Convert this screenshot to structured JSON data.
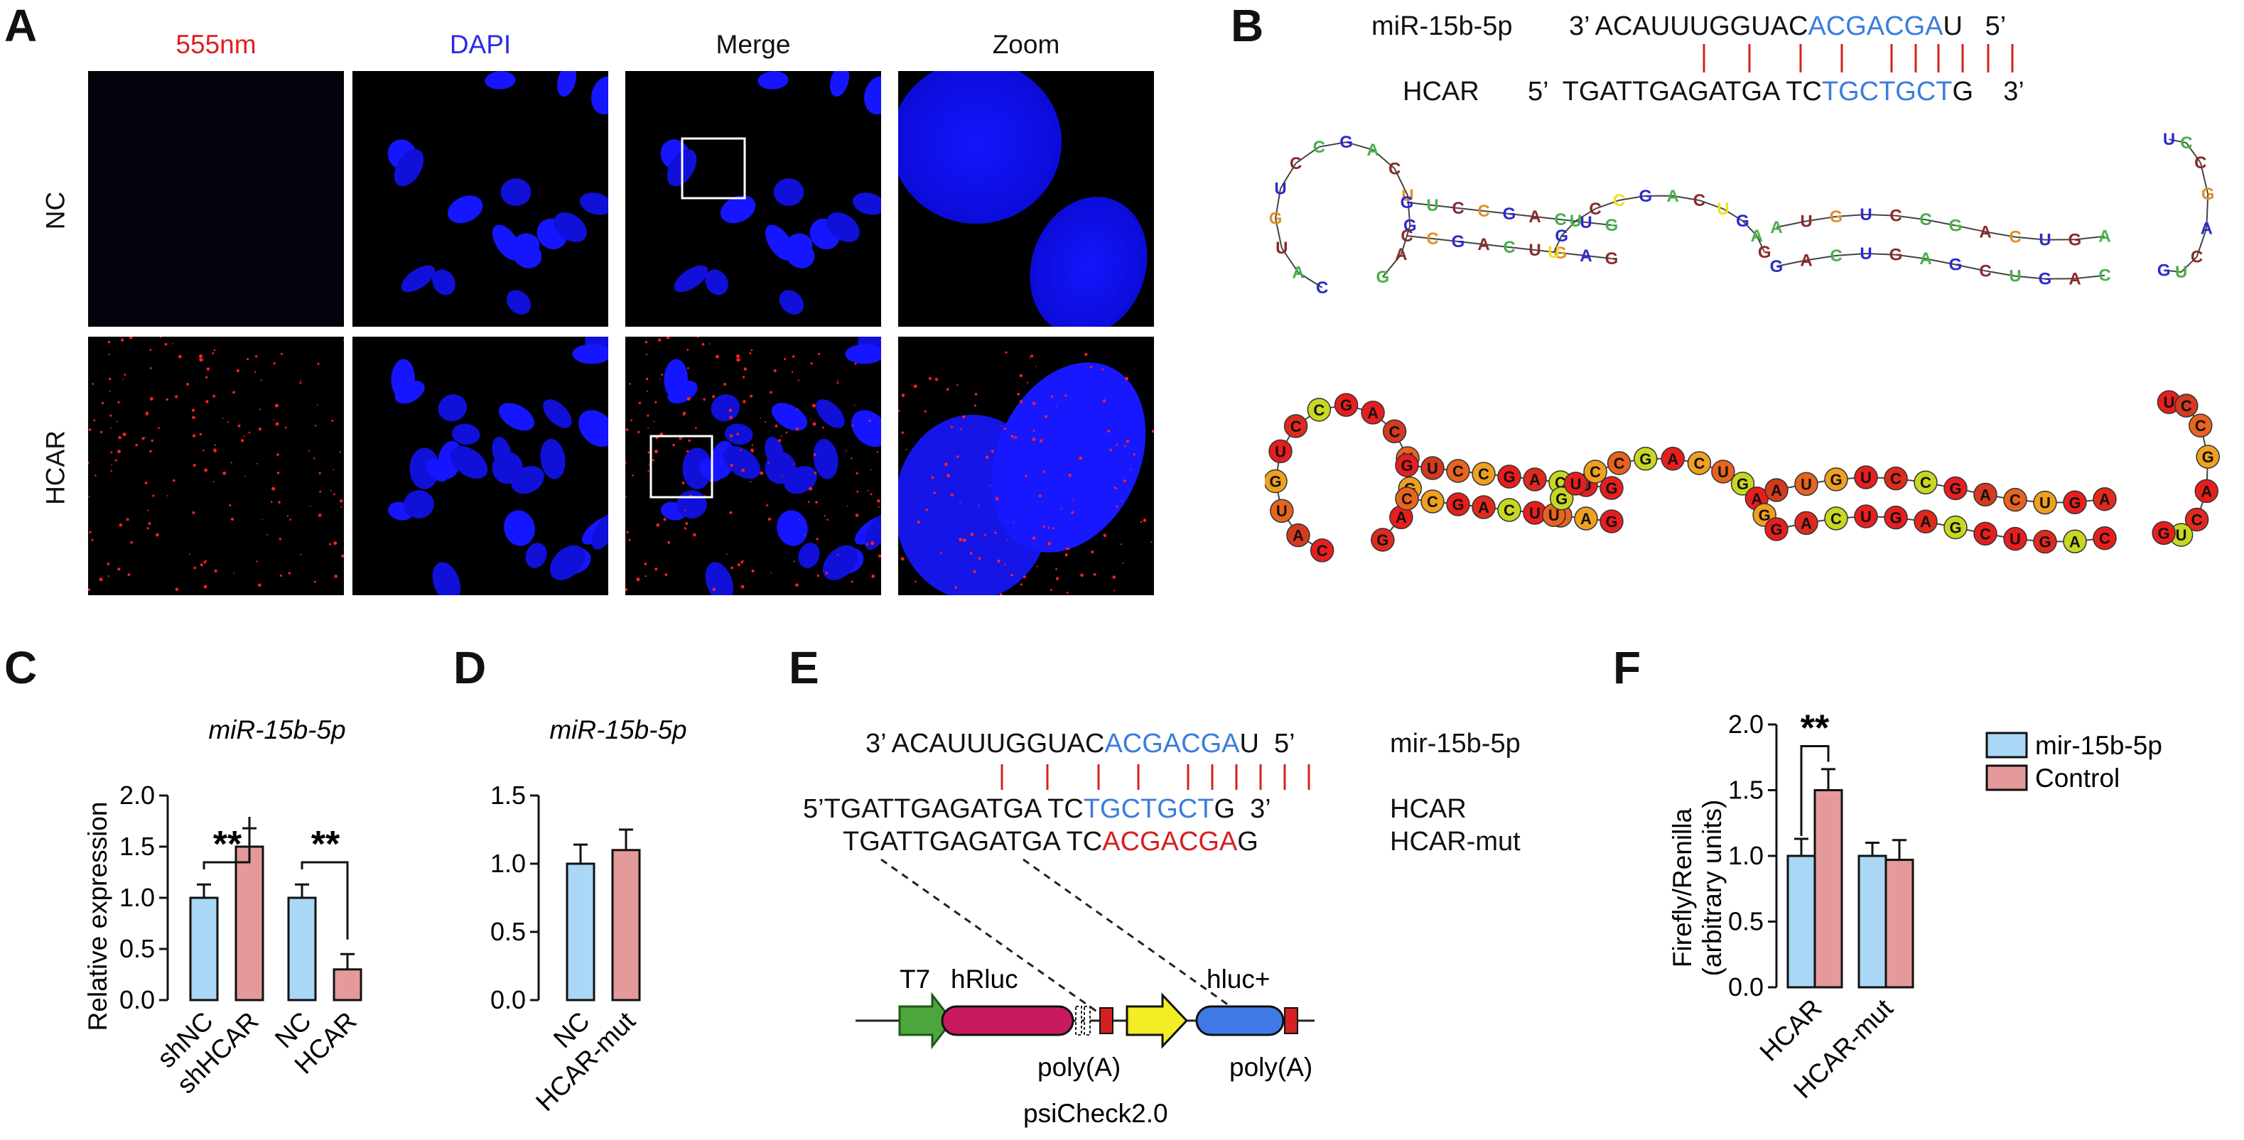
{
  "panels": {
    "A": "A",
    "B": "B",
    "C": "C",
    "D": "D",
    "E": "E",
    "F": "F"
  },
  "panelA": {
    "columns": [
      "555nm",
      "DAPI",
      "Merge",
      "Zoom"
    ],
    "rows": [
      "NC",
      "HCAR"
    ],
    "colors": {
      "red_label": "#e02020",
      "blue_label": "#2a2ae8",
      "nucleus": "#1a1aff",
      "probe": "#ff2020"
    }
  },
  "panelB": {
    "mirna_name": "miR-15b-5p",
    "mirna_5p": "3’",
    "mirna_seq_a": "ACAUUUGGUAC",
    "mirna_seq_b": "ACGACGA",
    "mirna_seq_c": "U",
    "mirna_3p": "5’",
    "target_name": "HCAR",
    "target_5p": "5’",
    "target_seq_a": "TGATTGAGATGA TC",
    "target_seq_b": "TGCTGCT",
    "target_seq_c": "G",
    "target_3p": "3’"
  },
  "panelC": {
    "title": "miR-15b-5p",
    "sig1": "**",
    "sig2": "**",
    "chart_data": {
      "type": "bar",
      "categories": [
        "shNC",
        "shHCAR",
        "NC",
        "HCAR"
      ],
      "values": [
        1.0,
        1.5,
        1.0,
        0.3
      ],
      "errors": [
        0.13,
        0.18,
        0.13,
        0.15
      ],
      "colors": [
        "#a9d7f5",
        "#e49a9a",
        "#a9d7f5",
        "#e49a9a"
      ],
      "title": "miR-15b-5p",
      "ylabel": "Relative  expression",
      "ylim": [
        0,
        2.0
      ],
      "yticks": [
        "0.0",
        "0.5",
        "1.0",
        "1.5",
        "2.0"
      ]
    }
  },
  "panelD": {
    "title": "miR-15b-5p",
    "chart_data": {
      "type": "bar",
      "categories": [
        "NC",
        "HCAR-mut"
      ],
      "values": [
        1.0,
        1.1
      ],
      "errors": [
        0.14,
        0.15
      ],
      "colors": [
        "#a9d7f5",
        "#e49a9a"
      ],
      "title": "miR-15b-5p",
      "ylim": [
        0,
        1.5
      ],
      "yticks": [
        "0.0",
        "0.5",
        "1.0",
        "1.5"
      ]
    }
  },
  "panelE": {
    "line1_prefix": "3’ ACAUUUGGUAC",
    "line1_blue": "ACGACGA",
    "line1_suffix": "U  5’",
    "line1_label": "mir-15b-5p",
    "line2_prefix": "5’TGATTGAGATGA TC",
    "line2_blue": "TGCTGCT",
    "line2_suffix": "G  3’",
    "line2_label": "HCAR",
    "line3_prefix": "TGATTGAGATGA TC",
    "line3_red": "ACGACGA",
    "line3_suffix": "G",
    "line3_label": "HCAR-mut",
    "t7": "T7",
    "hrluc": "hRluc",
    "hluc": "hluc+",
    "polyA1": "poly(A)",
    "polyA2": "poly(A)",
    "vector": "psiCheck2.0"
  },
  "panelF": {
    "sig": "**",
    "chart_data": {
      "type": "bar",
      "categories": [
        "HCAR",
        "HCAR-mut"
      ],
      "series": [
        {
          "name": "mir-15b-5p",
          "values": [
            1.0,
            1.0
          ],
          "errors": [
            0.13,
            0.1
          ],
          "color": "#a9d7f5"
        },
        {
          "name": "Control",
          "values": [
            1.5,
            0.97
          ],
          "errors": [
            0.16,
            0.15
          ],
          "color": "#e49a9a"
        }
      ],
      "ylabel": "Firefly/Renilla",
      "ylabel2": "(arbitrary units)",
      "ylim": [
        0,
        2.0
      ],
      "yticks": [
        "0.0",
        "0.5",
        "1.0",
        "1.5",
        "2.0"
      ],
      "legend_position": "top-right"
    }
  }
}
